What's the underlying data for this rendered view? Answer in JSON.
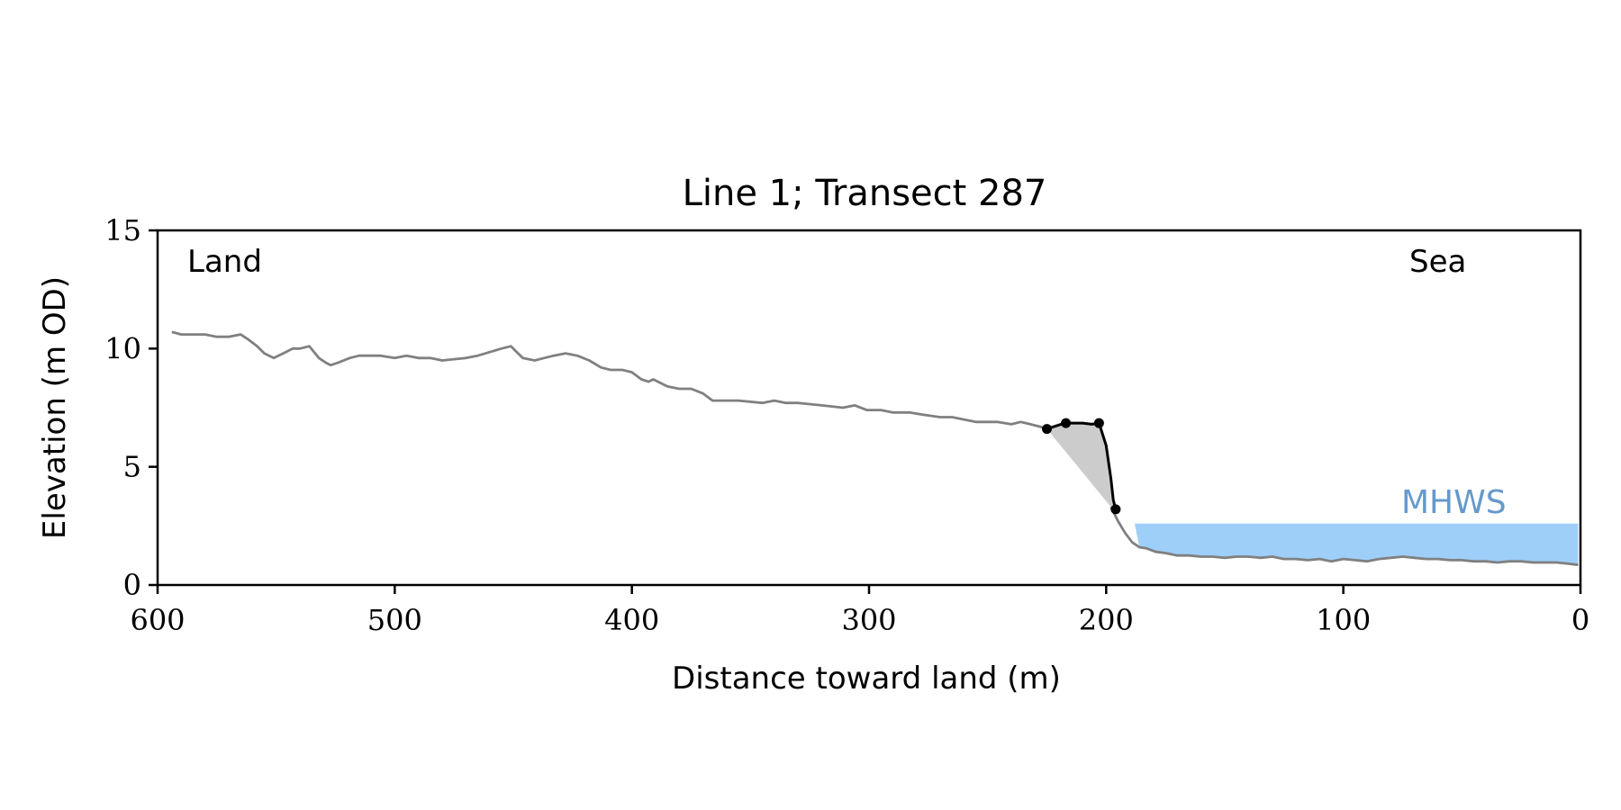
{
  "chart_data": {
    "type": "line",
    "title": "Line 1; Transect 287",
    "xlabel": "Distance toward land (m)",
    "ylabel": "Elevation (m OD)",
    "xlim": [
      600,
      0
    ],
    "ylim": [
      0,
      15
    ],
    "x_ticks": [
      600,
      500,
      400,
      300,
      200,
      100,
      0
    ],
    "y_ticks": [
      0,
      5,
      10,
      15
    ],
    "annotations": {
      "land": "Land",
      "sea": "Sea",
      "mhws": "MHWS"
    },
    "mhws_level": 2.6,
    "mhws_x_range": [
      188,
      1
    ],
    "colors": {
      "profile": "#808080",
      "bluff": "#000000",
      "fill": "#cccccc",
      "water": "#9ecff8",
      "mhws_text": "#6699cc"
    },
    "grid": false,
    "profile": {
      "x": [
        594,
        590,
        585,
        580,
        575,
        570,
        565,
        562,
        558,
        555,
        551,
        547,
        543,
        540,
        536,
        532,
        529,
        527,
        524,
        519,
        515,
        510,
        506,
        500,
        495,
        490,
        485,
        480,
        470,
        465,
        455,
        451,
        449,
        446,
        441,
        437,
        433,
        428,
        423,
        418,
        413,
        409,
        404,
        400,
        396,
        393,
        391,
        389,
        385,
        380,
        375,
        370,
        366,
        364,
        360,
        355,
        345,
        340,
        335,
        330,
        320,
        311,
        306,
        301,
        295,
        290,
        283,
        277,
        270,
        265,
        255,
        250,
        246,
        240,
        236,
        232,
        228,
        225
      ],
      "y": [
        10.7,
        10.6,
        10.6,
        10.6,
        10.5,
        10.5,
        10.6,
        10.4,
        10.1,
        9.8,
        9.6,
        9.8,
        10.0,
        10.0,
        10.1,
        9.6,
        9.4,
        9.3,
        9.4,
        9.6,
        9.7,
        9.7,
        9.7,
        9.6,
        9.7,
        9.6,
        9.6,
        9.5,
        9.6,
        9.7,
        10.0,
        10.1,
        9.9,
        9.6,
        9.5,
        9.6,
        9.7,
        9.8,
        9.7,
        9.5,
        9.2,
        9.1,
        9.1,
        9.0,
        8.7,
        8.6,
        8.7,
        8.6,
        8.4,
        8.3,
        8.3,
        8.1,
        7.8,
        7.8,
        7.8,
        7.8,
        7.7,
        7.8,
        7.7,
        7.7,
        7.6,
        7.5,
        7.6,
        7.4,
        7.4,
        7.3,
        7.3,
        7.2,
        7.1,
        7.1,
        6.9,
        6.9,
        6.9,
        6.8,
        6.9,
        6.8,
        6.7,
        6.6
      ]
    },
    "lower_profile": {
      "x": [
        198,
        195,
        192,
        189,
        186,
        183,
        179,
        175,
        170,
        165,
        160,
        155,
        150,
        145,
        140,
        135,
        130,
        125,
        120,
        115,
        110,
        105,
        100,
        95,
        90,
        85,
        80,
        75,
        70,
        65,
        60,
        55,
        50,
        45,
        40,
        35,
        30,
        25,
        20,
        15,
        10,
        5,
        1
      ],
      "y": [
        3.3,
        2.7,
        2.2,
        1.8,
        1.6,
        1.55,
        1.4,
        1.35,
        1.25,
        1.25,
        1.2,
        1.2,
        1.15,
        1.2,
        1.2,
        1.15,
        1.2,
        1.1,
        1.1,
        1.05,
        1.1,
        1.0,
        1.1,
        1.05,
        1.0,
        1.1,
        1.15,
        1.2,
        1.15,
        1.1,
        1.1,
        1.05,
        1.05,
        1.0,
        1.0,
        0.95,
        1.0,
        1.0,
        0.95,
        0.95,
        0.95,
        0.9,
        0.85
      ]
    },
    "bluff": {
      "x": [
        225,
        219,
        217,
        214,
        210,
        206,
        203,
        200,
        198,
        197,
        196
      ],
      "y": [
        6.6,
        6.8,
        6.85,
        6.85,
        6.85,
        6.8,
        6.85,
        5.9,
        4.5,
        3.6,
        3.2
      ]
    },
    "bluff_points": {
      "x": [
        225,
        217,
        203,
        196
      ],
      "y": [
        6.6,
        6.85,
        6.85,
        3.2
      ]
    },
    "shaded_area": {
      "x": [
        225,
        219,
        217,
        214,
        210,
        206,
        203,
        200,
        198,
        197,
        196,
        198,
        225
      ],
      "y": [
        6.6,
        6.8,
        6.85,
        6.85,
        6.85,
        6.8,
        6.85,
        5.9,
        4.5,
        3.6,
        3.2,
        3.3,
        6.6
      ]
    }
  }
}
